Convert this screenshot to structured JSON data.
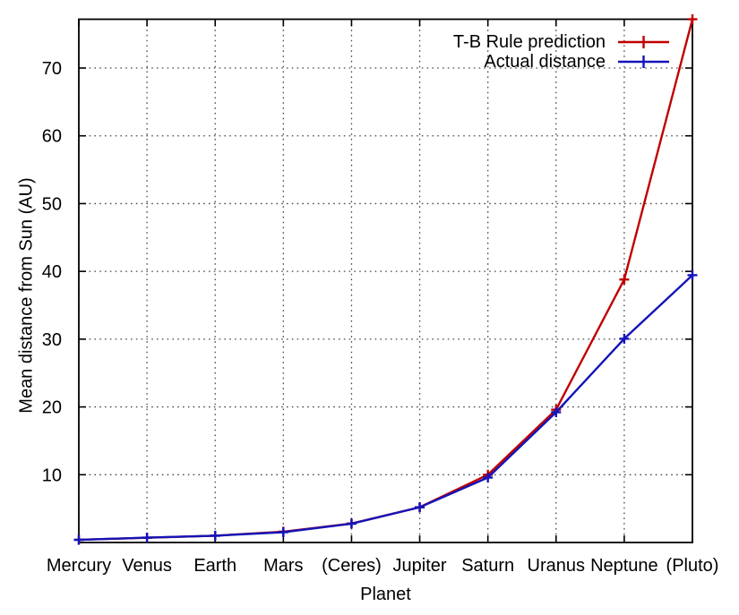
{
  "chart_data": {
    "type": "line",
    "title": "",
    "xlabel": "Planet",
    "ylabel": "Mean distance from Sun (AU)",
    "categories": [
      "Mercury",
      "Venus",
      "Earth",
      "Mars",
      "(Ceres)",
      "Jupiter",
      "Saturn",
      "Uranus",
      "Neptune",
      "(Pluto)"
    ],
    "series": [
      {
        "name": "T-B Rule prediction",
        "color": "#c00000",
        "marker": "plus",
        "values": [
          0.4,
          0.7,
          1.0,
          1.6,
          2.8,
          5.2,
          10.0,
          19.6,
          38.8,
          77.2
        ]
      },
      {
        "name": "Actual distance",
        "color": "#1414b8",
        "marker": "plus",
        "values": [
          0.39,
          0.72,
          1.0,
          1.52,
          2.77,
          5.2,
          9.58,
          19.22,
          30.06,
          39.44
        ]
      }
    ],
    "yticks": [
      10,
      20,
      30,
      40,
      50,
      60,
      70
    ],
    "ylim": [
      0,
      77.2
    ],
    "grid": true,
    "grid_style": "dotted",
    "legend_position": "top-right",
    "axis_color": "#000000",
    "grid_color": "#484848",
    "text_color": "#000000",
    "background": "#ffffff"
  }
}
